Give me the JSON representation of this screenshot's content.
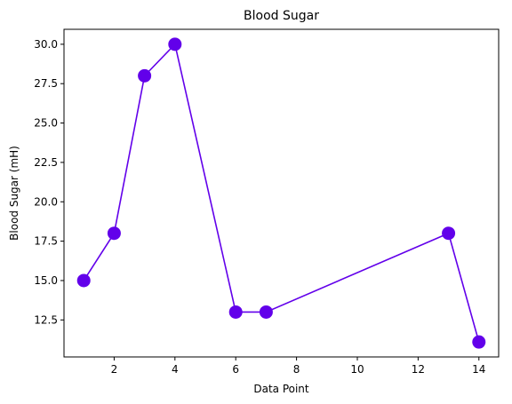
{
  "chart_data": {
    "type": "line",
    "title": "Blood Sugar",
    "xlabel": "Data Point",
    "ylabel": "Blood Sugar (mH)",
    "xlim": [
      0.35,
      14.65
    ],
    "ylim": [
      10.15,
      30.95
    ],
    "xticks": [
      2,
      4,
      6,
      8,
      10,
      12,
      14
    ],
    "xtick_labels": [
      "2",
      "4",
      "6",
      "8",
      "10",
      "12",
      "14"
    ],
    "yticks": [
      12.5,
      15.0,
      17.5,
      20.0,
      22.5,
      25.0,
      27.5,
      30.0
    ],
    "ytick_labels": [
      "12.5",
      "15.0",
      "17.5",
      "20.0",
      "22.5",
      "25.0",
      "27.5",
      "30.0"
    ],
    "grid": false,
    "series": [
      {
        "color": "#6200ea",
        "marker": "circle",
        "x": [
          1,
          2,
          3,
          4,
          6,
          7,
          13,
          14
        ],
        "y": [
          15.0,
          18.0,
          28.0,
          30.0,
          13.0,
          13.0,
          18.0,
          11.1
        ]
      }
    ]
  }
}
